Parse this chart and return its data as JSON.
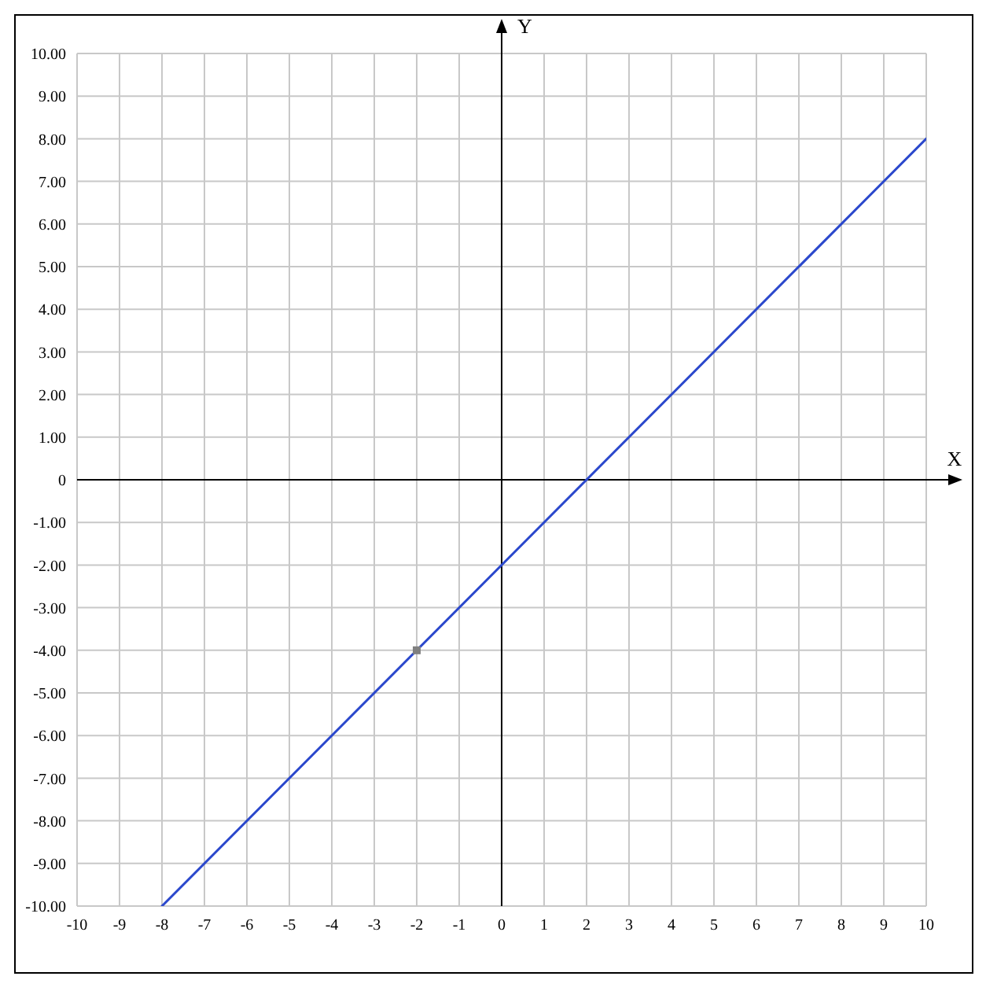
{
  "chart_data": {
    "type": "line",
    "xlabel": "X",
    "ylabel": "Y",
    "xlim": [
      -10,
      10
    ],
    "xticks": [
      -10,
      -9,
      -8,
      -7,
      -6,
      -5,
      -4,
      -3,
      -2,
      -1,
      0,
      1,
      2,
      3,
      4,
      5,
      6,
      7,
      8,
      9,
      10
    ],
    "ylim": [
      -10,
      10
    ],
    "yticks": [
      {
        "value": -10,
        "label": "-10.00"
      },
      {
        "value": -9,
        "label": "-9.00"
      },
      {
        "value": -8,
        "label": "-8.00"
      },
      {
        "value": -7,
        "label": "-7.00"
      },
      {
        "value": -6,
        "label": "-6.00"
      },
      {
        "value": -5,
        "label": "-5.00"
      },
      {
        "value": -4,
        "label": "-4.00"
      },
      {
        "value": -3,
        "label": "-3.00"
      },
      {
        "value": -2,
        "label": "-2.00"
      },
      {
        "value": -1,
        "label": "-1.00"
      },
      0,
      {
        "value": 1,
        "label": "1.00"
      },
      {
        "value": 2,
        "label": "2.00"
      },
      {
        "value": 3,
        "label": "3.00"
      },
      {
        "value": 4,
        "label": "4.00"
      },
      {
        "value": 5,
        "label": "5.00"
      },
      {
        "value": 6,
        "label": "6.00"
      },
      {
        "value": 7,
        "label": "7.00"
      },
      {
        "value": 8,
        "label": "8.00"
      },
      {
        "value": 9,
        "label": "9.00"
      },
      {
        "value": 10,
        "label": "10.00"
      }
    ],
    "grid": true,
    "marker": "none",
    "line_style": "solid",
    "series": [
      {
        "color": "#2b48cc",
        "x": [
          -8,
          10
        ],
        "values": [
          -10,
          8
        ]
      },
      {
        "type": "scatter",
        "color": "#808080",
        "marker": "square",
        "x": [
          -2
        ],
        "values": [
          -4
        ]
      }
    ]
  }
}
